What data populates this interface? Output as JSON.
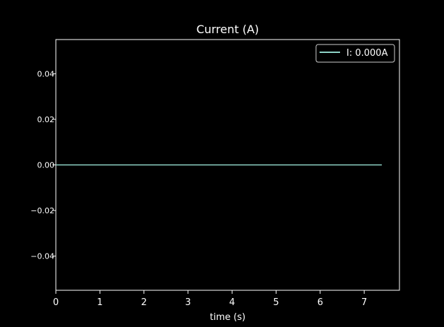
{
  "chart_data": {
    "type": "line",
    "title": "Current (A)",
    "xlabel": "time (s)",
    "ylabel": "",
    "xlim": [
      0,
      7.8
    ],
    "ylim": [
      -0.055,
      0.055
    ],
    "xticks": [
      0,
      1,
      2,
      3,
      4,
      5,
      6,
      7
    ],
    "xtick_labels": [
      "0",
      "1",
      "2",
      "3",
      "4",
      "5",
      "6",
      "7"
    ],
    "yticks": [
      0.04,
      0.02,
      0.0,
      -0.02,
      -0.04
    ],
    "ytick_labels": [
      "0.04",
      "0.02",
      "0.00",
      "−0.02",
      "−0.04"
    ],
    "grid": false,
    "legend_position": "top-right",
    "colors": {
      "background": "#000000",
      "foreground": "#ffffff",
      "series": "#8dd3c7"
    },
    "series": [
      {
        "name": "I: 0.000A",
        "x": [
          0,
          7.4
        ],
        "y": [
          0,
          0
        ]
      }
    ]
  }
}
